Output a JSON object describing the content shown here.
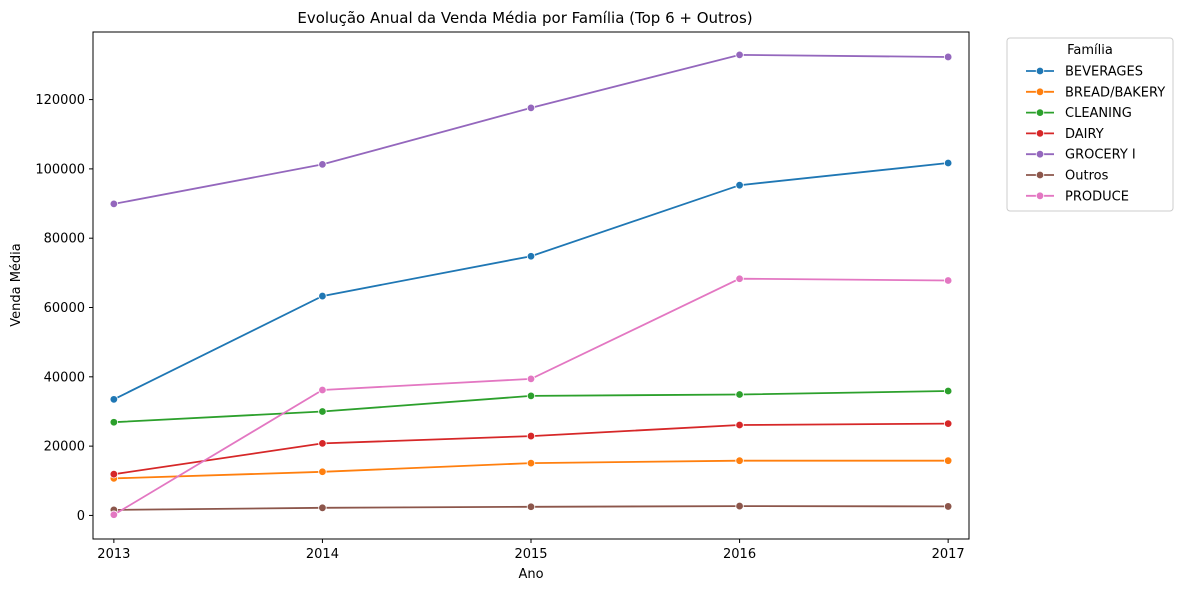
{
  "chart_data": {
    "type": "line",
    "title": "Evolução Anual da Venda Média por Família (Top 6 + Outros)",
    "xlabel": "Ano",
    "ylabel": "Venda Média",
    "x": [
      2013,
      2014,
      2015,
      2016,
      2017
    ],
    "x_tick_labels": [
      "2013",
      "2014",
      "2015",
      "2016",
      "2017"
    ],
    "y_ticks": [
      0,
      20000,
      40000,
      60000,
      80000,
      100000,
      120000
    ],
    "y_tick_labels": [
      "0",
      "20000",
      "40000",
      "60000",
      "80000",
      "100000",
      "120000"
    ],
    "xlim": [
      2012.9,
      2017.1
    ],
    "ylim": [
      -6800,
      139500
    ],
    "grid": false,
    "legend": {
      "title": "Família",
      "placement": "outside-top-right"
    },
    "series": [
      {
        "name": "BEVERAGES",
        "color": "#1f77b4",
        "values": [
          33500,
          63300,
          74800,
          95300,
          101700
        ]
      },
      {
        "name": "BREAD/BAKERY",
        "color": "#ff7f0e",
        "values": [
          10700,
          12600,
          15100,
          15800,
          15800
        ]
      },
      {
        "name": "CLEANING",
        "color": "#2ca02c",
        "values": [
          26900,
          30000,
          34500,
          34900,
          35900
        ]
      },
      {
        "name": "DAIRY",
        "color": "#d62728",
        "values": [
          11900,
          20800,
          22900,
          26100,
          26500
        ]
      },
      {
        "name": "GROCERY I",
        "color": "#9467bd",
        "values": [
          89900,
          101300,
          117600,
          132900,
          132300
        ]
      },
      {
        "name": "Outros",
        "color": "#8c564b",
        "values": [
          1600,
          2200,
          2500,
          2700,
          2600
        ]
      },
      {
        "name": "PRODUCE",
        "color": "#e377c2",
        "values": [
          200,
          36200,
          39400,
          68300,
          67800
        ]
      }
    ]
  }
}
